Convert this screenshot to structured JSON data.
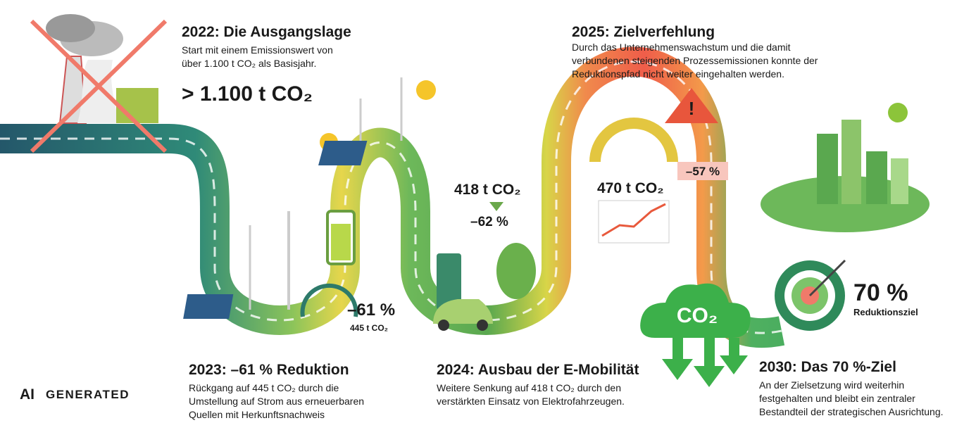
{
  "start": {
    "title": "2022: Die Ausgangslage",
    "lines": [
      "Start mit einem Emissionswert von",
      "über 1.100 t CO₂ als Basisjahr."
    ],
    "value": "> 1.100 t CO₂"
  },
  "y2023": {
    "title": "2023: –61 % Reduktion",
    "lines": [
      "Rückgang auf 445 t CO₂ durch die",
      "Umstellung auf Strom aus erneuerbaren",
      "Quellen mit Herkunftsnachweis"
    ],
    "percent": "–61 %",
    "amount": "445 t CO₂"
  },
  "y2024": {
    "title": "2024: Ausbau der E-Mobilität",
    "lines": [
      "Weitere Senkung auf 418 t CO₂ durch den",
      "verstärkten Einsatz von Elektrofahrzeugen."
    ],
    "amount": "418 t CO₂",
    "percent": "–62 %"
  },
  "y2025": {
    "title": "2025: Zielverfehlung",
    "lines": [
      "Durch das Unternehmenswachstum und die damit",
      "verbundenen steigenden Prozessemissionen konnte der",
      "Reduktionspfad nicht weiter eingehalten werden."
    ],
    "amount": "470 t CO₂",
    "percent": "–57 %"
  },
  "y2030": {
    "title": "2030: Das 70 %-Ziel",
    "lines": [
      "An der Zielsetzung wird weiterhin",
      "festgehalten und bleibt ein zentraler",
      "Bestandteil der strategischen Ausrichtung."
    ],
    "percent": "70 %",
    "label": "Reduktionsziel"
  },
  "cloud": "CO₂",
  "watermark": {
    "ai": "AI",
    "text": "GENERATED"
  }
}
